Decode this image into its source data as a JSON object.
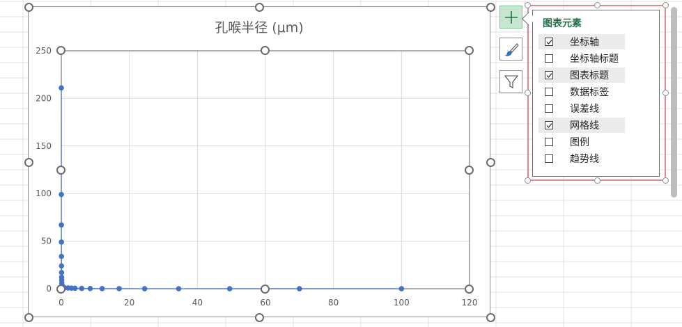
{
  "chart_data": {
    "type": "scatter",
    "title": "孔喉半径 (μm)",
    "xlim": [
      0,
      120
    ],
    "ylim": [
      0,
      250
    ],
    "xticks": [
      "0",
      "20",
      "40",
      "60",
      "80",
      "100",
      "120"
    ],
    "yticks": [
      "0",
      "50",
      "100",
      "150",
      "200",
      "250"
    ],
    "grid": true,
    "legend": "none",
    "series_color": "#4472c4",
    "x": [
      0.01,
      0.014,
      0.02,
      0.03,
      0.04,
      0.06,
      0.08,
      0.1,
      0.12,
      0.15,
      0.2,
      0.3,
      0.5,
      1,
      2,
      3,
      4,
      6,
      8.5,
      12,
      17,
      24.5,
      34.5,
      49.5,
      70,
      100
    ],
    "y": [
      211,
      99,
      67,
      49,
      34,
      24,
      17,
      12,
      9,
      6,
      4,
      3,
      2,
      1,
      0.8,
      0.6,
      0.5,
      0.3,
      0.2,
      0.15,
      0.1,
      0.05,
      0.03,
      0.02,
      0.01,
      0.01
    ]
  },
  "chart_elements_panel": {
    "title": "图表元素",
    "options": [
      {
        "label": "坐标轴",
        "checked": true
      },
      {
        "label": "坐标轴标题",
        "checked": false
      },
      {
        "label": "图表标题",
        "checked": true
      },
      {
        "label": "数据标签",
        "checked": false
      },
      {
        "label": "误差线",
        "checked": false
      },
      {
        "label": "网格线",
        "checked": true
      },
      {
        "label": "图例",
        "checked": false
      },
      {
        "label": "趋势线",
        "checked": false
      }
    ]
  },
  "side_buttons": {
    "add_icon": "plus-icon",
    "style_icon": "paintbrush-icon",
    "filter_icon": "funnel-icon"
  }
}
